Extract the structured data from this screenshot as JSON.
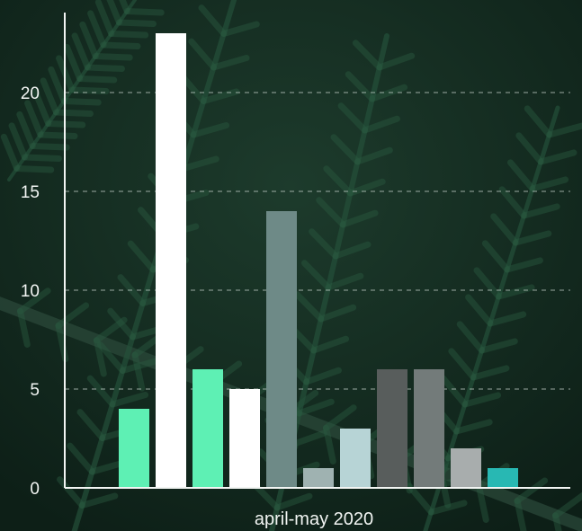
{
  "chart_data": {
    "type": "bar",
    "categories": [
      "april-may 2020"
    ],
    "xlabel": "april-may 2020",
    "ylabel": "",
    "ylim": [
      0,
      23
    ],
    "yticks": [
      0,
      5,
      10,
      15,
      20
    ],
    "grid": "horizontal dashed",
    "legend": "none",
    "bars": [
      {
        "value": 4,
        "color": "#5ef0b4"
      },
      {
        "value": 23,
        "color": "#ffffff"
      },
      {
        "value": 6,
        "color": "#5ef0b4"
      },
      {
        "value": 5,
        "color": "#ffffff"
      },
      {
        "value": 14,
        "color": "#6e8a87"
      },
      {
        "value": 1,
        "color": "#9fb2b1"
      },
      {
        "value": 3,
        "color": "#b7d4d6"
      },
      {
        "value": 6,
        "color": "#585d5c"
      },
      {
        "value": 6,
        "color": "#737b7a"
      },
      {
        "value": 2,
        "color": "#a8adad"
      },
      {
        "value": 1,
        "color": "#28b8b3"
      }
    ]
  },
  "colors": {
    "background": "#13291f",
    "axis": "#f2f5f3",
    "gridline": "#c9d4ce"
  }
}
